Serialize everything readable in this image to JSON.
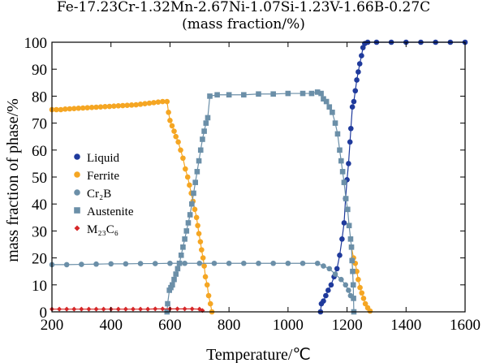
{
  "chart_data": {
    "type": "scatter",
    "title_line1": "Fe-17.23Cr-1.32Mn-2.67Ni-1.07Si-1.23V-1.66B-0.27C",
    "title_line2": "(mass fraction/%)",
    "xlabel": "Temperature/℃",
    "ylabel": "mass fraction of phase/%",
    "xlim": [
      200,
      1600
    ],
    "ylim": [
      0,
      100
    ],
    "xticks": [
      "200",
      "400",
      "600",
      "800",
      "1000",
      "1200",
      "1400",
      "1600"
    ],
    "yticks": [
      "0",
      "10",
      "20",
      "30",
      "40",
      "50",
      "60",
      "70",
      "80",
      "90",
      "100"
    ],
    "grid": false,
    "legend_position": "center-left",
    "series": [
      {
        "name": "Liquid",
        "marker": "circle",
        "color": "#1f3a9c",
        "points": [
          [
            1110,
            0
          ],
          [
            1113,
            3
          ],
          [
            1120,
            4
          ],
          [
            1128,
            6
          ],
          [
            1136,
            8
          ],
          [
            1146,
            10
          ],
          [
            1156,
            13
          ],
          [
            1166,
            16
          ],
          [
            1175,
            21
          ],
          [
            1183,
            27
          ],
          [
            1190,
            33
          ],
          [
            1195,
            42
          ],
          [
            1200,
            49
          ],
          [
            1205,
            55
          ],
          [
            1210,
            63
          ],
          [
            1213,
            68
          ],
          [
            1218,
            76
          ],
          [
            1223,
            78
          ],
          [
            1228,
            82
          ],
          [
            1233,
            86
          ],
          [
            1238,
            89
          ],
          [
            1243,
            92
          ],
          [
            1249,
            95
          ],
          [
            1254,
            98
          ],
          [
            1260,
            99.5
          ],
          [
            1270,
            100
          ],
          [
            1300,
            100
          ],
          [
            1350,
            100
          ],
          [
            1400,
            100
          ],
          [
            1450,
            100
          ],
          [
            1500,
            100
          ],
          [
            1550,
            100
          ],
          [
            1600,
            100
          ]
        ]
      },
      {
        "name": "Ferrite",
        "marker": "circle",
        "color": "#f5a623",
        "points": [
          [
            200,
            75
          ],
          [
            215,
            75
          ],
          [
            230,
            75
          ],
          [
            245,
            75.2
          ],
          [
            260,
            75.3
          ],
          [
            275,
            75.4
          ],
          [
            290,
            75.5
          ],
          [
            305,
            75.6
          ],
          [
            320,
            75.7
          ],
          [
            335,
            75.8
          ],
          [
            350,
            75.9
          ],
          [
            365,
            76
          ],
          [
            380,
            76.1
          ],
          [
            395,
            76.2
          ],
          [
            410,
            76.3
          ],
          [
            425,
            76.4
          ],
          [
            440,
            76.5
          ],
          [
            455,
            76.6
          ],
          [
            470,
            76.7
          ],
          [
            485,
            76.8
          ],
          [
            500,
            77
          ],
          [
            515,
            77.2
          ],
          [
            530,
            77.4
          ],
          [
            545,
            77.6
          ],
          [
            560,
            77.8
          ],
          [
            575,
            78
          ],
          [
            590,
            78
          ],
          [
            595,
            74
          ],
          [
            600,
            71
          ],
          [
            607,
            69
          ],
          [
            614,
            67
          ],
          [
            620,
            65
          ],
          [
            628,
            63
          ],
          [
            636,
            60
          ],
          [
            644,
            57
          ],
          [
            652,
            53
          ],
          [
            660,
            50
          ],
          [
            666,
            47
          ],
          [
            672,
            44
          ],
          [
            678,
            41
          ],
          [
            684,
            38
          ],
          [
            690,
            35
          ],
          [
            694,
            32
          ],
          [
            698,
            29
          ],
          [
            703,
            26
          ],
          [
            707,
            23
          ],
          [
            712,
            20
          ],
          [
            716,
            17
          ],
          [
            720,
            13
          ],
          [
            726,
            10
          ],
          [
            731,
            6
          ],
          [
            737,
            3
          ],
          [
            742,
            0
          ],
          [
            1215,
            24
          ],
          [
            1222,
            20
          ],
          [
            1228,
            18
          ],
          [
            1233,
            15
          ],
          [
            1238,
            12
          ],
          [
            1244,
            9
          ],
          [
            1250,
            7
          ],
          [
            1256,
            5
          ],
          [
            1262,
            3
          ],
          [
            1270,
            1.5
          ],
          [
            1278,
            0.3
          ]
        ]
      },
      {
        "name": "Cr₂B",
        "marker": "circle",
        "color": "#6b8fa8",
        "points": [
          [
            200,
            17.5
          ],
          [
            250,
            17.5
          ],
          [
            300,
            17.6
          ],
          [
            350,
            17.7
          ],
          [
            400,
            17.8
          ],
          [
            450,
            17.8
          ],
          [
            500,
            17.9
          ],
          [
            550,
            17.9
          ],
          [
            600,
            18
          ],
          [
            650,
            18
          ],
          [
            700,
            18
          ],
          [
            750,
            18
          ],
          [
            800,
            18
          ],
          [
            850,
            18
          ],
          [
            900,
            18
          ],
          [
            950,
            18
          ],
          [
            1000,
            18
          ],
          [
            1050,
            18
          ],
          [
            1100,
            18
          ],
          [
            1120,
            17
          ],
          [
            1140,
            16
          ],
          [
            1160,
            14
          ],
          [
            1180,
            12
          ],
          [
            1195,
            10
          ],
          [
            1205,
            8
          ],
          [
            1212,
            6
          ]
        ]
      },
      {
        "name": "Austenite",
        "marker": "square",
        "color": "#6b8fa8",
        "points": [
          [
            590,
            0
          ],
          [
            592,
            3
          ],
          [
            598,
            8
          ],
          [
            603,
            9
          ],
          [
            608,
            10
          ],
          [
            614,
            12
          ],
          [
            620,
            14
          ],
          [
            626,
            16
          ],
          [
            632,
            18
          ],
          [
            638,
            21
          ],
          [
            644,
            24
          ],
          [
            650,
            27
          ],
          [
            656,
            30
          ],
          [
            662,
            33
          ],
          [
            668,
            36
          ],
          [
            674,
            40
          ],
          [
            680,
            44
          ],
          [
            686,
            48
          ],
          [
            692,
            52
          ],
          [
            698,
            56
          ],
          [
            704,
            60
          ],
          [
            710,
            64
          ],
          [
            716,
            67
          ],
          [
            722,
            70
          ],
          [
            728,
            72
          ],
          [
            735,
            80
          ],
          [
            760,
            80.5
          ],
          [
            800,
            80.5
          ],
          [
            850,
            80.5
          ],
          [
            900,
            80.8
          ],
          [
            950,
            80.8
          ],
          [
            1000,
            81
          ],
          [
            1050,
            81
          ],
          [
            1080,
            81
          ],
          [
            1100,
            81.5
          ],
          [
            1112,
            81
          ],
          [
            1120,
            79
          ],
          [
            1130,
            78
          ],
          [
            1140,
            76
          ],
          [
            1150,
            74
          ],
          [
            1160,
            70
          ],
          [
            1168,
            66
          ],
          [
            1175,
            60
          ],
          [
            1180,
            56
          ],
          [
            1185,
            52
          ],
          [
            1190,
            48
          ],
          [
            1196,
            42
          ],
          [
            1202,
            38
          ],
          [
            1207,
            32
          ],
          [
            1212,
            27
          ],
          [
            1215,
            24
          ],
          [
            1217,
            19
          ],
          [
            1219,
            15
          ],
          [
            1221,
            10
          ],
          [
            1222,
            5
          ],
          [
            1223,
            0
          ]
        ]
      },
      {
        "name": "M₂₃C₆",
        "marker": "diamond",
        "color": "#d62728",
        "points": [
          [
            200,
            1
          ],
          [
            225,
            1
          ],
          [
            250,
            1
          ],
          [
            275,
            1
          ],
          [
            300,
            1
          ],
          [
            325,
            1
          ],
          [
            350,
            1
          ],
          [
            375,
            1
          ],
          [
            400,
            1
          ],
          [
            425,
            1
          ],
          [
            450,
            1
          ],
          [
            475,
            1
          ],
          [
            500,
            1
          ],
          [
            525,
            1
          ],
          [
            550,
            1.1
          ],
          [
            575,
            1.1
          ],
          [
            600,
            1.1
          ],
          [
            625,
            1.1
          ],
          [
            650,
            1.1
          ],
          [
            675,
            1.1
          ],
          [
            700,
            1
          ],
          [
            710,
            0.5
          ]
        ]
      }
    ]
  }
}
